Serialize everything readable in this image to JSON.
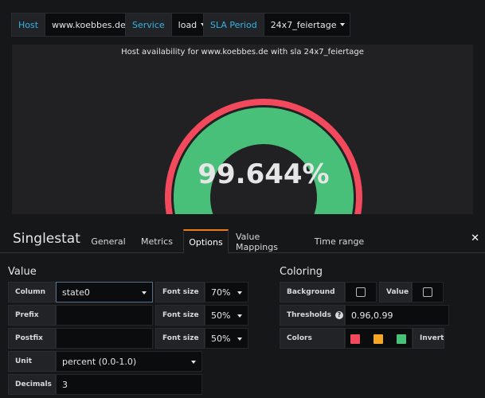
{
  "variables": [
    {
      "label": "Host",
      "value": "www.koebbes.de"
    },
    {
      "label": "Service",
      "value": "load"
    },
    {
      "label": "SLA Period",
      "value": "24x7_feiertage"
    }
  ],
  "panel": {
    "title": "Host availability for www.koebbes.de with sla 24x7_feiertage",
    "value_text": "99.644%",
    "value": 0.99644,
    "gauge_min": 0,
    "gauge_max": 1,
    "thresholds": [
      0.96,
      0.99
    ],
    "colors": {
      "bad": "#f2495c",
      "warn": "#f5a623",
      "ok": "#48c079"
    }
  },
  "editor": {
    "title": "Singlestat",
    "tabs": [
      "General",
      "Metrics",
      "Options",
      "Value Mappings",
      "Time range"
    ],
    "active_tab": "Options"
  },
  "value_section": {
    "title": "Value",
    "column_label": "Column",
    "column_value": "state0",
    "prefix_label": "Prefix",
    "prefix_value": "",
    "postfix_label": "Postfix",
    "postfix_value": "",
    "unit_label": "Unit",
    "unit_value": "percent (0.0-1.0)",
    "decimals_label": "Decimals",
    "decimals_value": "3",
    "font_size_label": "Font size",
    "font_size_value_1": "70%",
    "font_size_value_2": "50%",
    "font_size_value_3": "50%"
  },
  "coloring_section": {
    "title": "Coloring",
    "background_label": "Background",
    "value_label": "Value",
    "thresholds_label": "Thresholds",
    "thresholds_value": "0.96,0.99",
    "colors_label": "Colors",
    "invert_label": "Invert",
    "help_icon": "?"
  }
}
